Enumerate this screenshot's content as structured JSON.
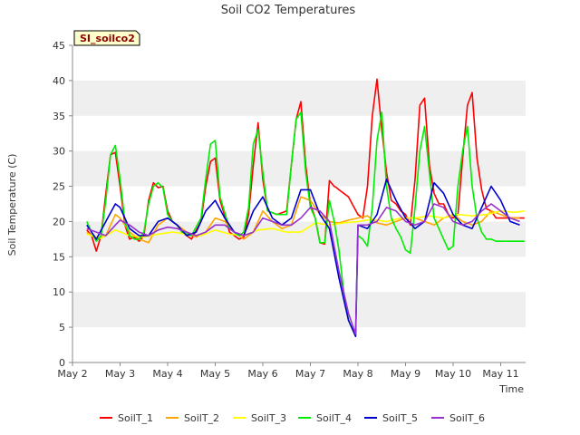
{
  "chart_data": {
    "type": "line",
    "title": "Soil CO2 Temperatures",
    "badge": "SI_soilco2",
    "xlabel": "Time",
    "ylabel": "Soil Temperature (C)",
    "ylim": [
      0,
      45
    ],
    "yticks": [
      0,
      5,
      10,
      15,
      20,
      25,
      30,
      35,
      40,
      45
    ],
    "xlim": [
      0,
      9.55
    ],
    "xtick_labels": [
      "May 2",
      "May 3",
      "May 4",
      "May 5",
      "May 6",
      "May 7",
      "May 8",
      "May 9",
      "May 10",
      "May 11"
    ],
    "xtick_positions": [
      0,
      1,
      2,
      3,
      4,
      5,
      6,
      7,
      8,
      9
    ],
    "grid": "horizontal-bands",
    "legend_position": "bottom",
    "x_units": "days since May 2",
    "series": [
      {
        "name": "SoilT_1",
        "color": "#ff0000",
        "x": [
          0.3,
          0.4,
          0.5,
          0.6,
          0.7,
          0.8,
          0.9,
          1.0,
          1.1,
          1.2,
          1.3,
          1.4,
          1.5,
          1.6,
          1.7,
          1.8,
          1.9,
          2.0,
          2.1,
          2.2,
          2.3,
          2.5,
          2.7,
          2.8,
          2.9,
          3.0,
          3.1,
          3.3,
          3.4,
          3.5,
          3.6,
          3.7,
          3.8,
          3.9,
          4.0,
          4.1,
          4.3,
          4.5,
          4.6,
          4.7,
          4.8,
          4.9,
          5.0,
          5.1,
          5.2,
          5.3,
          5.4,
          5.5,
          5.55,
          5.6,
          5.7,
          5.8,
          6.0,
          6.1,
          6.2,
          6.3,
          6.4,
          6.5,
          6.6,
          6.7,
          6.8,
          6.9,
          7.0,
          7.1,
          7.2,
          7.3,
          7.4,
          7.5,
          7.6,
          7.7,
          7.8,
          7.9,
          8.0,
          8.1,
          8.2,
          8.3,
          8.4,
          8.5,
          8.6,
          8.7,
          8.8,
          8.9,
          9.0,
          9.1,
          9.2,
          9.3,
          9.4,
          9.5
        ],
        "y": [
          18.8,
          18.0,
          15.8,
          18.0,
          24.0,
          29.5,
          29.8,
          25.0,
          19.5,
          17.5,
          17.8,
          17.2,
          18.0,
          23.0,
          25.5,
          24.8,
          25.0,
          21.5,
          20.0,
          19.5,
          18.5,
          17.5,
          20.0,
          25.0,
          28.5,
          29.0,
          23.0,
          18.5,
          18.0,
          17.5,
          17.8,
          21.0,
          28.0,
          34.0,
          26.0,
          21.5,
          21.0,
          21.5,
          28.0,
          34.5,
          37.0,
          28.0,
          22.5,
          20.5,
          17.0,
          16.8,
          25.8,
          25.0,
          24.8,
          24.5,
          24.0,
          23.5,
          21.0,
          20.5,
          25.0,
          35.0,
          40.2,
          33.0,
          27.0,
          23.0,
          22.5,
          21.5,
          21.0,
          19.5,
          26.0,
          36.5,
          37.5,
          28.0,
          24.0,
          22.5,
          22.5,
          21.0,
          20.5,
          21.0,
          29.0,
          36.5,
          38.3,
          29.0,
          24.5,
          21.8,
          21.5,
          20.5,
          20.5,
          20.5,
          20.5,
          20.5,
          20.5,
          20.5
        ]
      },
      {
        "name": "SoilT_2",
        "color": "#ffa500",
        "x": [
          0.3,
          0.5,
          0.7,
          0.9,
          1.0,
          1.2,
          1.4,
          1.6,
          1.8,
          2.0,
          2.2,
          2.4,
          2.6,
          2.8,
          3.0,
          3.2,
          3.4,
          3.6,
          3.8,
          4.0,
          4.2,
          4.4,
          4.6,
          4.8,
          5.0,
          5.2,
          5.4,
          5.6,
          5.8,
          6.0,
          6.2,
          6.4,
          6.6,
          6.8,
          7.0,
          7.2,
          7.4,
          7.6,
          7.8,
          8.0,
          8.2,
          8.4,
          8.6,
          8.8,
          9.0,
          9.2,
          9.4
        ],
        "y": [
          18.5,
          17.5,
          18.0,
          21.0,
          20.5,
          18.5,
          17.5,
          17.0,
          19.5,
          20.5,
          19.5,
          18.5,
          17.8,
          18.5,
          20.5,
          20.0,
          18.5,
          17.5,
          18.5,
          21.5,
          20.0,
          19.0,
          19.5,
          23.5,
          23.0,
          21.0,
          20.0,
          19.8,
          20.2,
          20.5,
          20.8,
          19.8,
          19.5,
          20.0,
          20.5,
          20.5,
          20.0,
          19.5,
          20.5,
          21.0,
          20.0,
          19.5,
          20.0,
          21.5,
          21.0,
          20.5,
          20.5
        ]
      },
      {
        "name": "SoilT_3",
        "color": "#ffff00",
        "x": [
          0.3,
          0.6,
          0.9,
          1.2,
          1.5,
          1.8,
          2.1,
          2.4,
          2.7,
          3.0,
          3.3,
          3.6,
          3.9,
          4.2,
          4.5,
          4.8,
          5.1,
          5.4,
          5.7,
          6.0,
          6.3,
          6.6,
          6.9,
          7.2,
          7.5,
          7.8,
          8.1,
          8.4,
          8.7,
          9.0,
          9.3,
          9.5
        ],
        "y": [
          18.2,
          17.6,
          18.8,
          18.0,
          17.8,
          18.2,
          18.5,
          18.2,
          18.0,
          18.8,
          18.2,
          18.0,
          18.8,
          19.0,
          18.5,
          18.5,
          19.8,
          19.5,
          19.8,
          20.0,
          20.3,
          20.0,
          20.5,
          20.5,
          20.8,
          20.5,
          21.0,
          20.8,
          21.0,
          21.5,
          21.3,
          21.5
        ]
      },
      {
        "name": "SoilT_4",
        "color": "#00ee00",
        "x": [
          0.3,
          0.4,
          0.5,
          0.6,
          0.7,
          0.8,
          0.9,
          1.0,
          1.1,
          1.2,
          1.3,
          1.4,
          1.5,
          1.6,
          1.7,
          1.8,
          1.9,
          2.0,
          2.1,
          2.2,
          2.3,
          2.5,
          2.7,
          2.8,
          2.9,
          3.0,
          3.1,
          3.3,
          3.4,
          3.5,
          3.6,
          3.7,
          3.8,
          3.9,
          4.0,
          4.1,
          4.3,
          4.5,
          4.6,
          4.7,
          4.8,
          4.9,
          5.0,
          5.1,
          5.2,
          5.3,
          5.4,
          5.5,
          5.6,
          5.7,
          5.8,
          5.95,
          6.0,
          6.1,
          6.2,
          6.3,
          6.4,
          6.5,
          6.6,
          6.7,
          6.8,
          6.9,
          7.0,
          7.1,
          7.2,
          7.3,
          7.4,
          7.5,
          7.6,
          7.7,
          7.8,
          7.9,
          8.0,
          8.1,
          8.2,
          8.3,
          8.4,
          8.5,
          8.6,
          8.7,
          8.8,
          8.9,
          9.0,
          9.1,
          9.2,
          9.3,
          9.4,
          9.5
        ],
        "y": [
          20.0,
          18.5,
          17.2,
          18.0,
          23.0,
          29.5,
          30.8,
          26.0,
          20.0,
          18.0,
          17.5,
          17.5,
          18.5,
          22.5,
          25.0,
          25.5,
          24.8,
          21.0,
          20.0,
          19.5,
          18.5,
          18.0,
          20.5,
          26.0,
          31.0,
          31.5,
          23.5,
          19.0,
          18.5,
          18.0,
          18.5,
          22.0,
          31.0,
          33.0,
          27.0,
          21.5,
          21.0,
          21.0,
          28.0,
          34.5,
          35.5,
          27.0,
          22.0,
          20.5,
          17.0,
          17.0,
          23.0,
          20.0,
          16.0,
          10.0,
          6.0,
          3.7,
          18.0,
          17.5,
          16.5,
          22.0,
          31.5,
          35.5,
          25.0,
          20.5,
          19.0,
          17.8,
          16.0,
          15.5,
          22.0,
          30.0,
          33.5,
          27.0,
          20.5,
          19.0,
          17.5,
          16.0,
          16.5,
          25.0,
          30.0,
          33.5,
          25.0,
          20.5,
          18.5,
          17.5,
          17.5,
          17.2,
          17.2,
          17.2,
          17.2,
          17.2,
          17.2,
          17.2
        ]
      },
      {
        "name": "SoilT_5",
        "color": "#0000cc",
        "x": [
          0.3,
          0.5,
          0.7,
          0.9,
          1.0,
          1.2,
          1.4,
          1.6,
          1.8,
          2.0,
          2.2,
          2.4,
          2.6,
          2.8,
          3.0,
          3.2,
          3.4,
          3.6,
          3.8,
          4.0,
          4.2,
          4.4,
          4.6,
          4.8,
          5.0,
          5.2,
          5.4,
          5.6,
          5.8,
          5.95,
          6.0,
          6.2,
          6.4,
          6.6,
          6.8,
          7.0,
          7.2,
          7.4,
          7.6,
          7.8,
          8.0,
          8.2,
          8.4,
          8.6,
          8.8,
          9.0,
          9.2,
          9.4
        ],
        "y": [
          19.5,
          17.5,
          20.0,
          22.5,
          22.0,
          19.0,
          18.0,
          18.0,
          20.0,
          20.5,
          19.5,
          18.0,
          18.5,
          21.5,
          23.0,
          20.5,
          18.5,
          18.0,
          21.5,
          23.5,
          20.5,
          19.5,
          20.5,
          24.5,
          24.5,
          21.0,
          19.0,
          12.0,
          6.0,
          3.7,
          19.5,
          19.0,
          21.0,
          26.0,
          23.0,
          20.5,
          19.0,
          20.0,
          25.5,
          24.0,
          21.0,
          19.5,
          19.0,
          22.0,
          25.0,
          23.0,
          20.0,
          19.5
        ]
      },
      {
        "name": "SoilT_6",
        "color": "#9932cc",
        "x": [
          0.3,
          0.5,
          0.7,
          0.9,
          1.0,
          1.2,
          1.4,
          1.6,
          1.8,
          2.0,
          2.2,
          2.4,
          2.6,
          2.8,
          3.0,
          3.2,
          3.4,
          3.6,
          3.8,
          4.0,
          4.2,
          4.4,
          4.6,
          4.8,
          5.0,
          5.2,
          5.4,
          5.6,
          5.8,
          5.95,
          6.0,
          6.2,
          6.4,
          6.6,
          6.8,
          7.0,
          7.2,
          7.4,
          7.6,
          7.8,
          8.0,
          8.2,
          8.4,
          8.6,
          8.8,
          9.0,
          9.2,
          9.4
        ],
        "y": [
          19.0,
          18.5,
          18.0,
          19.5,
          20.2,
          19.5,
          18.5,
          18.0,
          18.8,
          19.2,
          19.0,
          18.5,
          18.0,
          18.5,
          19.5,
          19.5,
          18.5,
          18.0,
          18.5,
          20.5,
          20.0,
          19.5,
          19.5,
          20.5,
          22.0,
          21.5,
          20.0,
          13.0,
          7.0,
          4.0,
          19.5,
          19.5,
          20.0,
          22.0,
          21.5,
          20.0,
          19.5,
          20.0,
          22.5,
          22.0,
          20.0,
          19.5,
          20.0,
          21.5,
          22.5,
          21.5,
          20.5,
          20.0
        ]
      }
    ]
  }
}
